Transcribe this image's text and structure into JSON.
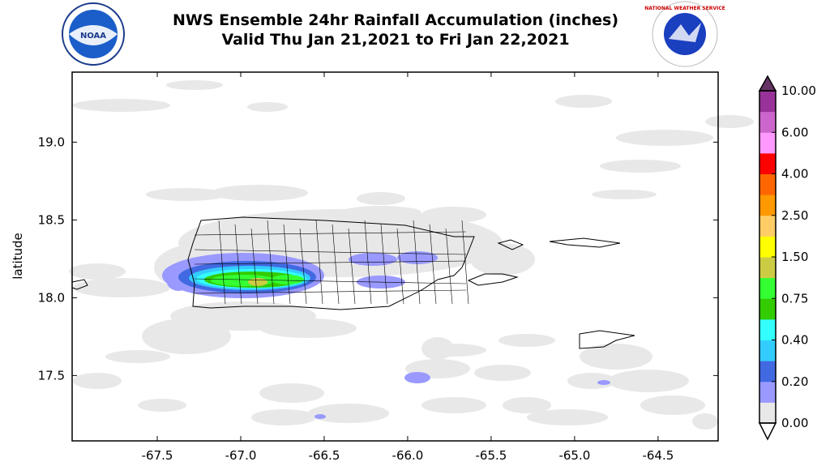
{
  "title": {
    "line1": "NWS Ensemble 24hr Rainfall Accumulation (inches)",
    "line2": "Valid Thu Jan 21,2021 to Fri Jan 22,2021"
  },
  "logos": {
    "left": "NOAA",
    "right": "NATIONAL WEATHER SERVICE"
  },
  "chart_data": {
    "type": "heatmap",
    "title": "NWS Ensemble 24hr Rainfall Accumulation (inches)",
    "subtitle": "Valid Thu Jan 21,2021 to Fri Jan 22,2021",
    "xlabel": "",
    "ylabel": "latitude",
    "xlim": [
      -68.01,
      -64.14
    ],
    "ylim": [
      17.08,
      19.45
    ],
    "x_ticks": [
      "-67.5",
      "-67.0",
      "-66.5",
      "-66.0",
      "-65.5",
      "-65.0",
      "-64.5"
    ],
    "x_tick_values": [
      -67.5,
      -67.0,
      -66.5,
      -66.0,
      -65.5,
      -65.0,
      -64.5
    ],
    "y_ticks": [
      "19.0",
      "18.5",
      "18.0",
      "17.5"
    ],
    "y_tick_values": [
      19.0,
      18.5,
      18.0,
      17.5
    ],
    "grid": false,
    "colorbar": {
      "labels": [
        "0.00",
        "0.20",
        "0.40",
        "0.75",
        "1.50",
        "2.50",
        "4.00",
        "6.00",
        "10.00"
      ],
      "colors": [
        "#e8e8e8",
        "#9999ff",
        "#4169e1",
        "#33ccff",
        "#33ffff",
        "#33cc00",
        "#33ff33",
        "#cccc44",
        "#ffff00",
        "#ffcc66",
        "#ff9900",
        "#ff6600",
        "#ff0000",
        "#ff99ff",
        "#cc66cc",
        "#993399"
      ],
      "over_color": "#663366",
      "under_color": "#ffffff",
      "placement": "right"
    },
    "max_rain_region": {
      "lon": -66.85,
      "lat": 18.1,
      "approx_inches": "1.00-1.50"
    }
  }
}
